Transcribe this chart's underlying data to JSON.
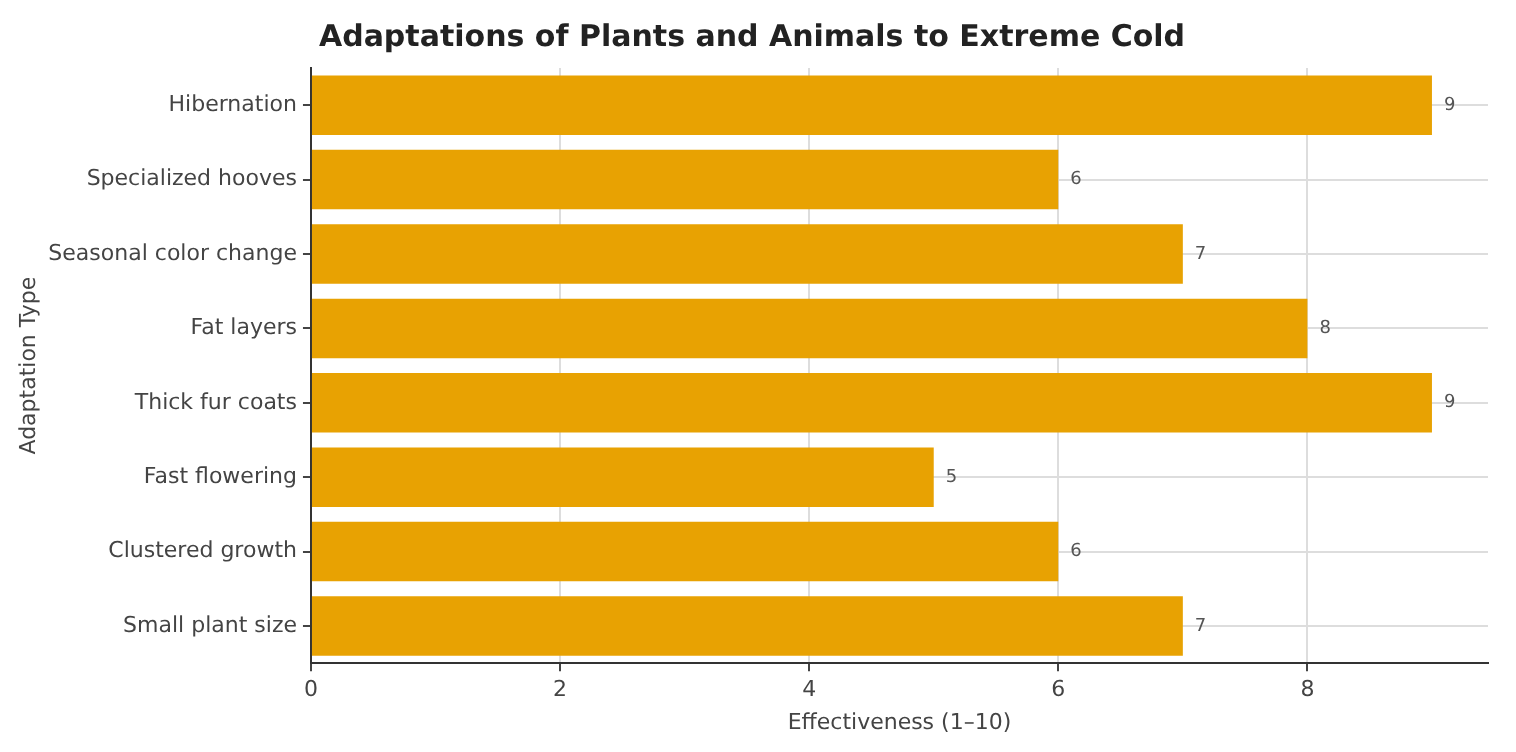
{
  "chart_data": {
    "type": "bar",
    "orientation": "horizontal",
    "title": "Adaptations of Plants and Animals to Extreme Cold",
    "xlabel": "Effectiveness (1–10)",
    "ylabel": "Adaptation Type",
    "categories": [
      "Hibernation",
      "Specialized hooves",
      "Seasonal color change",
      "Fat layers",
      "Thick fur coats",
      "Fast flowering",
      "Clustered growth",
      "Small plant size"
    ],
    "values": [
      9,
      6,
      7,
      8,
      9,
      5,
      6,
      7
    ],
    "color": "#e8a202",
    "xlim": [
      0,
      9.45
    ],
    "xticks": [
      0,
      2,
      4,
      6,
      8
    ],
    "grid": true,
    "data_labels": true,
    "legend": false
  }
}
